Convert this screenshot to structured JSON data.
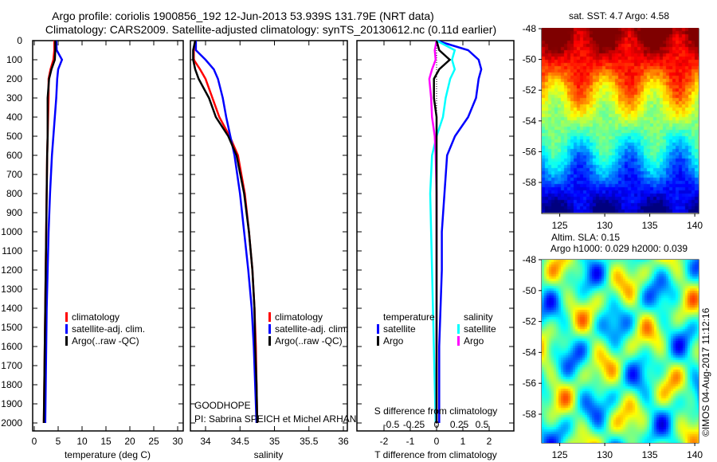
{
  "title_line1": "Argo profile: coriolis 1900856_192 12-Jun-2013 53.939S 131.79E (NRT data)",
  "title_line2": "Climatology: CARS2009. Satellite-adjusted climatology: synTS_20130612.nc (0.11d earlier)",
  "project": "GOODHOPE",
  "pi": "PI: Sabrina SPEICH et Michel ARHAN",
  "credit": "©IMOS 04-Aug-2017 11:12:16",
  "colors": {
    "climatology": "#ff0000",
    "satellite": "#0000ff",
    "argo": "#000000",
    "sal_satellite": "#00ffff",
    "sal_argo": "#ff00ff"
  },
  "chart_data": [
    {
      "type": "line",
      "name": "temperature",
      "xlabel": "temperature (deg C)",
      "ylabel": "",
      "xlim": [
        -0.3,
        31.2
      ],
      "ylim": [
        2050,
        0
      ],
      "xticks": [
        "0",
        "5",
        "10",
        "15",
        "20",
        "25",
        "30"
      ],
      "yticks": [
        "0",
        "100",
        "200",
        "300",
        "400",
        "500",
        "600",
        "700",
        "800",
        "900",
        "1000",
        "1100",
        "1200",
        "1300",
        "1400",
        "1500",
        "1600",
        "1700",
        "1800",
        "1900",
        "2000"
      ],
      "depth": [
        0,
        50,
        100,
        150,
        200,
        300,
        400,
        500,
        600,
        800,
        1000,
        1200,
        1400,
        1600,
        1800,
        2000
      ],
      "legend": [
        "climatology",
        "satellite-adj. clim.",
        "Argo(..raw -QC)"
      ],
      "series": [
        {
          "name": "climatology",
          "values": [
            4.2,
            4.2,
            4.0,
            3.4,
            3.0,
            3.0,
            2.9,
            2.8,
            2.7,
            2.6,
            2.5,
            2.4,
            2.3,
            2.2,
            2.1,
            2.0
          ]
        },
        {
          "name": "satellite-adj. clim.",
          "values": [
            4.6,
            4.7,
            5.8,
            5.0,
            4.8,
            4.6,
            4.3,
            4.0,
            3.7,
            3.3,
            3.0,
            2.8,
            2.6,
            2.5,
            2.4,
            2.3
          ]
        },
        {
          "name": "Argo",
          "values": [
            4.4,
            4.4,
            4.3,
            3.6,
            3.1,
            2.8,
            2.8,
            2.8,
            2.7,
            2.6,
            2.5,
            2.4,
            2.3,
            2.2,
            2.1,
            2.0
          ]
        }
      ]
    },
    {
      "type": "line",
      "name": "salinity",
      "xlabel": "salinity",
      "xlim": [
        33.8,
        36.1
      ],
      "ylim": [
        2050,
        0
      ],
      "xticks": [
        "34",
        "34.5",
        "35",
        "35.5",
        "36"
      ],
      "depth": [
        0,
        50,
        100,
        150,
        200,
        300,
        400,
        500,
        600,
        800,
        1000,
        1200,
        1400,
        1600,
        1800,
        2000
      ],
      "legend": [
        "climatology",
        "satellite-adj. clim.",
        "Argo(..raw -QC)"
      ],
      "series": [
        {
          "name": "climatology",
          "values": [
            33.85,
            33.83,
            33.83,
            33.92,
            34.0,
            34.1,
            34.2,
            34.35,
            34.47,
            34.57,
            34.63,
            34.68,
            34.71,
            34.73,
            34.74,
            34.75
          ]
        },
        {
          "name": "satellite-adj. clim.",
          "values": [
            33.86,
            33.86,
            34.0,
            34.12,
            34.18,
            34.25,
            34.3,
            34.36,
            34.42,
            34.5,
            34.56,
            34.62,
            34.67,
            34.7,
            34.72,
            34.74
          ]
        },
        {
          "name": "Argo",
          "values": [
            33.85,
            33.82,
            33.82,
            33.85,
            33.9,
            34.05,
            34.15,
            34.33,
            34.45,
            34.56,
            34.63,
            34.68,
            34.71,
            34.72,
            34.74,
            34.75
          ]
        }
      ]
    },
    {
      "type": "line",
      "name": "difference",
      "xlabel": "T difference from climatology",
      "x2label": "S difference from climatology",
      "xlim": [
        -3,
        3
      ],
      "ylim": [
        2050,
        0
      ],
      "xticks": [
        "-2",
        "-1",
        "0",
        "1",
        "2"
      ],
      "x2ticks": [
        "-0.5",
        "-0.25",
        "0",
        "0.25",
        "0.5"
      ],
      "depth": [
        0,
        50,
        100,
        150,
        200,
        300,
        400,
        500,
        600,
        800,
        1000,
        1200,
        1400,
        1600,
        1800,
        2000
      ],
      "legend": {
        "temperature": "temperature",
        "salinity": "salinity",
        "t_sat": "satellite",
        "t_argo": "Argo",
        "s_sat": "satellite",
        "s_argo": "Argo"
      },
      "series": [
        {
          "name": "T satellite",
          "values": [
            0.0,
            1.2,
            1.6,
            1.7,
            1.6,
            1.5,
            1.2,
            0.7,
            0.4,
            0.3,
            0.2,
            0.2,
            0.15,
            0.1,
            0.1,
            0.1
          ]
        },
        {
          "name": "T Argo",
          "values": [
            0.0,
            0.1,
            0.5,
            0.1,
            -0.1,
            -0.1,
            0.0,
            0.0,
            0.0,
            0.0,
            0.0,
            0.0,
            0.0,
            0.0,
            0.0,
            0.0
          ]
        },
        {
          "name": "S satellite",
          "values": [
            0.0,
            0.2,
            0.17,
            0.2,
            0.15,
            0.1,
            0.07,
            0.0,
            -0.05,
            -0.07,
            -0.06,
            -0.05,
            -0.04,
            -0.03,
            -0.02,
            -0.01
          ]
        },
        {
          "name": "S Argo",
          "values": [
            0.0,
            -0.02,
            -0.01,
            -0.05,
            -0.08,
            -0.06,
            -0.05,
            -0.02,
            -0.01,
            0.0,
            0.0,
            0.0,
            0.0,
            0.0,
            0.0,
            0.0
          ]
        }
      ]
    },
    {
      "type": "heatmap",
      "name": "sst-map",
      "title": "sat. SST: 4.7 Argo: 4.58",
      "xticks": [
        "125",
        "130",
        "135",
        "140"
      ],
      "yticks": [
        "-48",
        "-50",
        "-52",
        "-54",
        "-56",
        "-58"
      ],
      "float_position": [
        131.79,
        -53.939
      ]
    },
    {
      "type": "heatmap",
      "name": "sla-map",
      "title": "Altim. SLA: 0.15",
      "subtitle": "Argo h1000: 0.029 h2000: 0.039",
      "xticks": [
        "125",
        "130",
        "135",
        "140"
      ],
      "yticks": [
        "-48",
        "-50",
        "-52",
        "-54",
        "-56",
        "-58"
      ],
      "float_position": [
        131.79,
        -53.939
      ]
    }
  ]
}
